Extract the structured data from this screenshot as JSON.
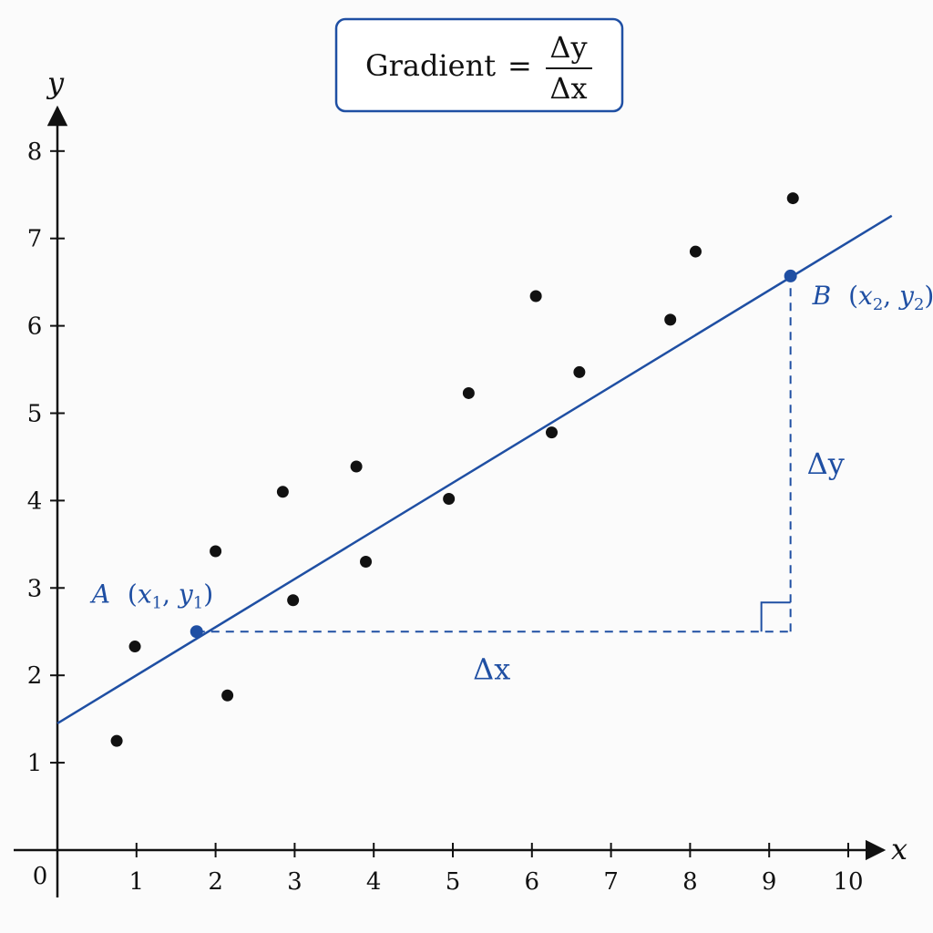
{
  "formula": {
    "lhs": "Gradient",
    "equals": "=",
    "numerator": "Δy",
    "denominator": "Δx"
  },
  "colors": {
    "accent": "#1f4fa3",
    "points": "#111111",
    "axis": "#111111"
  },
  "chart_data": {
    "type": "scatter",
    "x_axis": {
      "label": "x",
      "range": [
        0,
        10.5
      ],
      "ticks": [
        1,
        2,
        3,
        4,
        5,
        6,
        7,
        8,
        9,
        10
      ]
    },
    "y_axis": {
      "label": "y",
      "range": [
        0,
        8.5
      ],
      "ticks": [
        1,
        2,
        3,
        4,
        5,
        6,
        7,
        8
      ]
    },
    "origin_label": "0",
    "grid": false,
    "points": [
      {
        "x": 0.75,
        "y": 1.25
      },
      {
        "x": 0.98,
        "y": 2.33
      },
      {
        "x": 2.0,
        "y": 3.42
      },
      {
        "x": 2.15,
        "y": 1.77
      },
      {
        "x": 2.85,
        "y": 4.1
      },
      {
        "x": 2.98,
        "y": 2.86
      },
      {
        "x": 3.78,
        "y": 4.39
      },
      {
        "x": 3.9,
        "y": 3.3
      },
      {
        "x": 4.95,
        "y": 4.02
      },
      {
        "x": 5.2,
        "y": 5.23
      },
      {
        "x": 6.05,
        "y": 6.34
      },
      {
        "x": 6.25,
        "y": 4.78
      },
      {
        "x": 6.6,
        "y": 5.47
      },
      {
        "x": 7.75,
        "y": 6.07
      },
      {
        "x": 8.07,
        "y": 6.85
      },
      {
        "x": 9.3,
        "y": 7.46
      }
    ],
    "trend_line": {
      "x_start": 0,
      "y_start": 1.45,
      "x_end": 10.55,
      "y_end": 7.26
    },
    "point_A": {
      "x": 1.76,
      "y": 2.5,
      "name": "A",
      "coords": [
        "x",
        "1",
        "y",
        "1"
      ]
    },
    "point_B": {
      "x": 9.27,
      "y": 6.57,
      "name": "B",
      "coords": [
        "x",
        "2",
        "y",
        "2"
      ]
    },
    "delta_x_label": "Δx",
    "delta_y_label": "Δy"
  }
}
